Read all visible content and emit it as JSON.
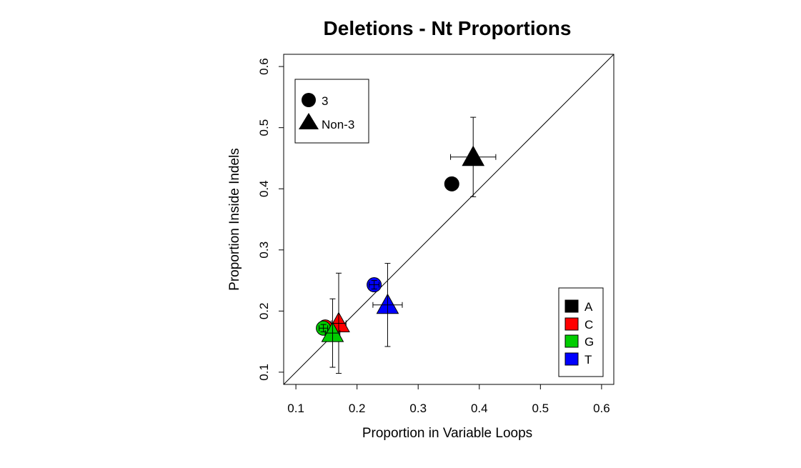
{
  "chart_data": {
    "type": "scatter",
    "title": "Deletions - Nt Proportions",
    "xlabel": "Proportion in Variable Loops",
    "ylabel": "Proportion Inside Indels",
    "xlim": [
      0.08,
      0.62
    ],
    "ylim": [
      0.08,
      0.62
    ],
    "xticks": [
      "0.1",
      "0.2",
      "0.3",
      "0.4",
      "0.5",
      "0.6"
    ],
    "yticks": [
      "0.1",
      "0.2",
      "0.3",
      "0.4",
      "0.5",
      "0.6"
    ],
    "diagonal": true,
    "shape_legend": {
      "position": "top-left",
      "entries": [
        {
          "label": "3",
          "shape": "circle"
        },
        {
          "label": "Non-3",
          "shape": "triangle"
        }
      ]
    },
    "color_legend": {
      "position": "bottom-right",
      "entries": [
        {
          "label": "A",
          "color": "#000000"
        },
        {
          "label": "C",
          "color": "#ff0000"
        },
        {
          "label": "G",
          "color": "#00cd00"
        },
        {
          "label": "T",
          "color": "#0000ff"
        }
      ]
    },
    "points": [
      {
        "nt": "A",
        "group": "3",
        "x": 0.355,
        "y": 0.408,
        "xerr": 0.01,
        "yerr": 0.007
      },
      {
        "nt": "A",
        "group": "Non-3",
        "x": 0.39,
        "y": 0.452,
        "xerr": 0.037,
        "yerr": 0.065
      },
      {
        "nt": "C",
        "group": "3",
        "x": 0.148,
        "y": 0.174,
        "xerr": 0.007,
        "yerr": 0.006
      },
      {
        "nt": "C",
        "group": "Non-3",
        "x": 0.17,
        "y": 0.18,
        "xerr": 0.012,
        "yerr": 0.082
      },
      {
        "nt": "G",
        "group": "3",
        "x": 0.145,
        "y": 0.172,
        "xerr": 0.007,
        "yerr": 0.006
      },
      {
        "nt": "G",
        "group": "Non-3",
        "x": 0.16,
        "y": 0.164,
        "xerr": 0.012,
        "yerr": 0.056
      },
      {
        "nt": "T",
        "group": "3",
        "x": 0.228,
        "y": 0.243,
        "xerr": 0.008,
        "yerr": 0.007
      },
      {
        "nt": "T",
        "group": "Non-3",
        "x": 0.25,
        "y": 0.21,
        "xerr": 0.024,
        "yerr": 0.068
      }
    ]
  }
}
